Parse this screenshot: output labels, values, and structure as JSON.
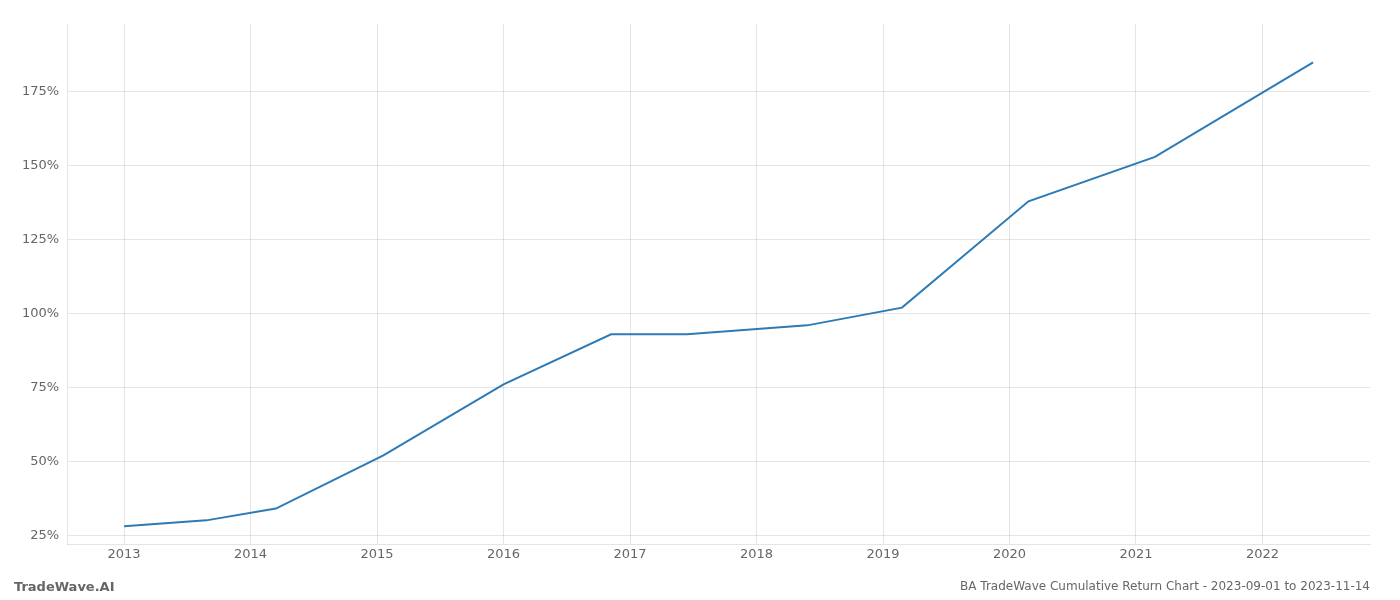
{
  "chart_data": {
    "type": "line",
    "title": "BA TradeWave Cumulative Return Chart - 2023-09-01 to 2023-11-14",
    "annotations": [
      "TradeWave.AI"
    ],
    "x": [
      2013.0,
      2013.65,
      2014.2,
      2015.05,
      2016.0,
      2016.85,
      2017.45,
      2018.4,
      2019.15,
      2020.15,
      2021.15,
      2022.4
    ],
    "values": [
      28,
      30,
      34,
      52,
      76,
      93,
      93,
      96,
      102,
      138,
      153,
      185
    ],
    "color": "#2c7bb6",
    "xlim": [
      2012.55,
      2022.85
    ],
    "xticks": [
      2013,
      2014,
      2015,
      2016,
      2017,
      2018,
      2019,
      2020,
      2021,
      2022
    ],
    "ylim": [
      22,
      198
    ],
    "yticks": [
      {
        "value": 25,
        "label": "25%"
      },
      {
        "value": 50,
        "label": "50%"
      },
      {
        "value": 75,
        "label": "75%"
      },
      {
        "value": 100,
        "label": "100%"
      },
      {
        "value": 125,
        "label": "125%"
      },
      {
        "value": 150,
        "label": "150%"
      },
      {
        "value": 175,
        "label": "175%"
      }
    ],
    "grid": true
  }
}
